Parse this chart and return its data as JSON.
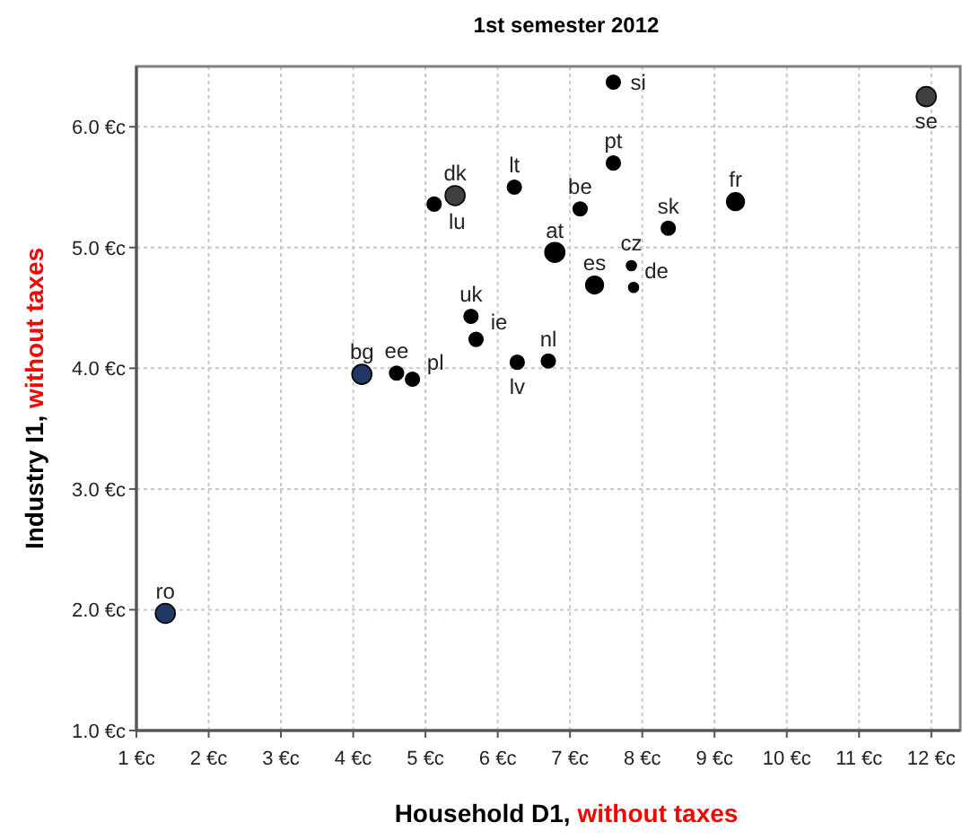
{
  "chart_data": {
    "type": "bubble",
    "title": "1st semester 2012",
    "xlabel": "Household D1, without taxes",
    "ylabel": "Industry I1, without taxes",
    "x": [
      1.4,
      4.12,
      4.6,
      4.82,
      5.12,
      5.41,
      6.23,
      5.63,
      5.7,
      6.27,
      6.7,
      6.79,
      7.14,
      7.34,
      7.6,
      7.6,
      7.85,
      7.88,
      8.36,
      9.29,
      11.93
    ],
    "values": [
      1.97,
      3.95,
      3.96,
      3.91,
      5.36,
      5.43,
      5.5,
      4.43,
      4.24,
      4.05,
      4.06,
      4.96,
      5.32,
      4.69,
      5.7,
      6.37,
      4.85,
      4.67,
      5.16,
      5.38,
      6.25
    ],
    "sizes": [
      1,
      1,
      0.5,
      0.5,
      0.5,
      1,
      0.5,
      0.5,
      0.5,
      0.5,
      0.5,
      1,
      0.5,
      0.8,
      0.5,
      0.5,
      0.25,
      0.25,
      0.5,
      0.8,
      1
    ],
    "colors": [
      "#1f3864",
      "#1f3864",
      "#000000",
      "#000000",
      "#000000",
      "#404040",
      "#000000",
      "#000000",
      "#000000",
      "#000000",
      "#000000",
      "#000000",
      "#000000",
      "#000000",
      "#000000",
      "#000000",
      "#000000",
      "#000000",
      "#000000",
      "#000000",
      "#404040"
    ],
    "annotations": [
      {
        "text": "ro",
        "x": 1.4,
        "y": 1.97
      },
      {
        "text": "bg",
        "x": 4.12,
        "y": 3.95
      },
      {
        "text": "ee",
        "x": 4.6,
        "y": 3.96
      },
      {
        "text": "pl",
        "x": 4.82,
        "y": 3.91
      },
      {
        "text": "lu",
        "x": 5.12,
        "y": 5.36
      },
      {
        "text": "dk",
        "x": 5.41,
        "y": 5.43
      },
      {
        "text": "lt",
        "x": 6.23,
        "y": 5.5
      },
      {
        "text": "uk",
        "x": 5.63,
        "y": 4.43
      },
      {
        "text": "ie",
        "x": 5.7,
        "y": 4.24
      },
      {
        "text": "lv",
        "x": 6.27,
        "y": 4.05
      },
      {
        "text": "nl",
        "x": 6.7,
        "y": 4.06
      },
      {
        "text": "at",
        "x": 6.79,
        "y": 4.96
      },
      {
        "text": "be",
        "x": 7.14,
        "y": 5.32
      },
      {
        "text": "es",
        "x": 7.34,
        "y": 4.69
      },
      {
        "text": "pt",
        "x": 7.6,
        "y": 5.7
      },
      {
        "text": "si",
        "x": 7.6,
        "y": 6.37
      },
      {
        "text": "cz",
        "x": 7.85,
        "y": 4.85
      },
      {
        "text": "de",
        "x": 7.88,
        "y": 4.67
      },
      {
        "text": "sk",
        "x": 8.36,
        "y": 5.16
      },
      {
        "text": "fr",
        "x": 9.29,
        "y": 5.38
      },
      {
        "text": "se",
        "x": 11.93,
        "y": 6.25
      }
    ],
    "xlim": [
      1,
      12.4
    ],
    "ylim": [
      1,
      6.5
    ],
    "xticks": [
      {
        "value": 1,
        "label": "1 €c"
      },
      {
        "value": 2,
        "label": "2 €c"
      },
      {
        "value": 3,
        "label": "3 €c"
      },
      {
        "value": 4,
        "label": "4 €c"
      },
      {
        "value": 5,
        "label": "5 €c"
      },
      {
        "value": 6,
        "label": "6 €c"
      },
      {
        "value": 7,
        "label": "7 €c"
      },
      {
        "value": 8,
        "label": "8 €c"
      },
      {
        "value": 9,
        "label": "9 €c"
      },
      {
        "value": 10,
        "label": "10 €c"
      },
      {
        "value": 11,
        "label": "11 €c"
      },
      {
        "value": 12,
        "label": "12 €c"
      }
    ],
    "yticks": [
      {
        "value": 1,
        "label": "1.0 €c"
      },
      {
        "value": 2,
        "label": "2.0 €c"
      },
      {
        "value": 3,
        "label": "3.0 €c"
      },
      {
        "value": 4,
        "label": "4.0 €c"
      },
      {
        "value": 5,
        "label": "5.0 €c"
      },
      {
        "value": 6,
        "label": "6.0 €c"
      }
    ],
    "grid": true
  }
}
